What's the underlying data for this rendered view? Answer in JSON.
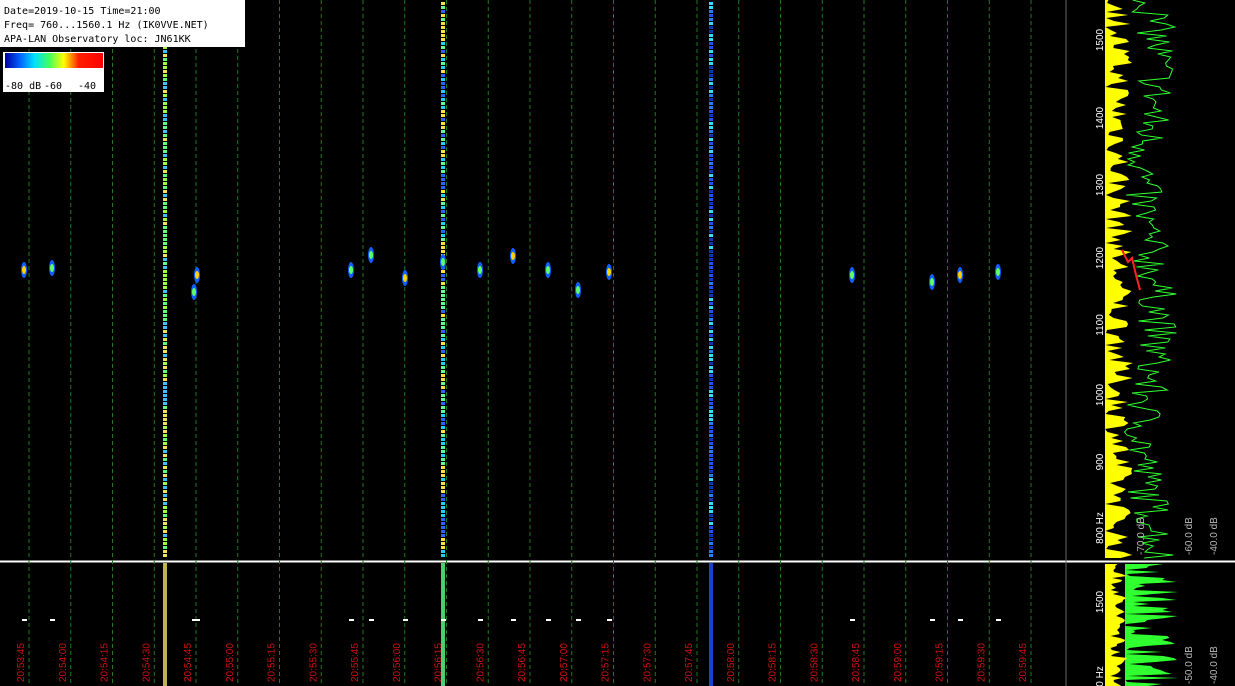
{
  "header": {
    "lines": [
      "Date=2019-10-15 Time=21:00",
      "Freq= 760...1560.1 Hz (IK0VVE.NET)",
      "APA-LAN Observatory loc: JN61KK"
    ]
  },
  "colorbar": {
    "labels": [
      "-80 dB",
      "-60",
      "-40"
    ]
  },
  "time_axis": {
    "labels": [
      "20:53:45",
      "20:54:00",
      "20:54:15",
      "20:54:30",
      "20:54:45",
      "20:55:00",
      "20:55:15",
      "20:55:30",
      "20:55:45",
      "20:56:00",
      "20:56:15",
      "20:56:30",
      "20:56:45",
      "20:57:00",
      "20:57:15",
      "20:57:30",
      "20:57:45",
      "20:58:00",
      "20:58:15",
      "20:58:30",
      "20:58:45",
      "20:59:00",
      "20:59:15",
      "20:59:30",
      "20:59:45"
    ]
  },
  "frequency_axis": {
    "labels": [
      "1500",
      "1400",
      "1300",
      "1200",
      "1100",
      "1000",
      "900",
      "800 Hz"
    ]
  },
  "level_axis": {
    "labels": [
      "-70.0 dB",
      "-60.0 dB",
      "-40.0 dB"
    ]
  },
  "lower_panel": {
    "frequency_labels": [
      "1500",
      "500 Hz"
    ],
    "level_labels": [
      "-50.0 dB",
      "-40.0 dB"
    ]
  }
}
